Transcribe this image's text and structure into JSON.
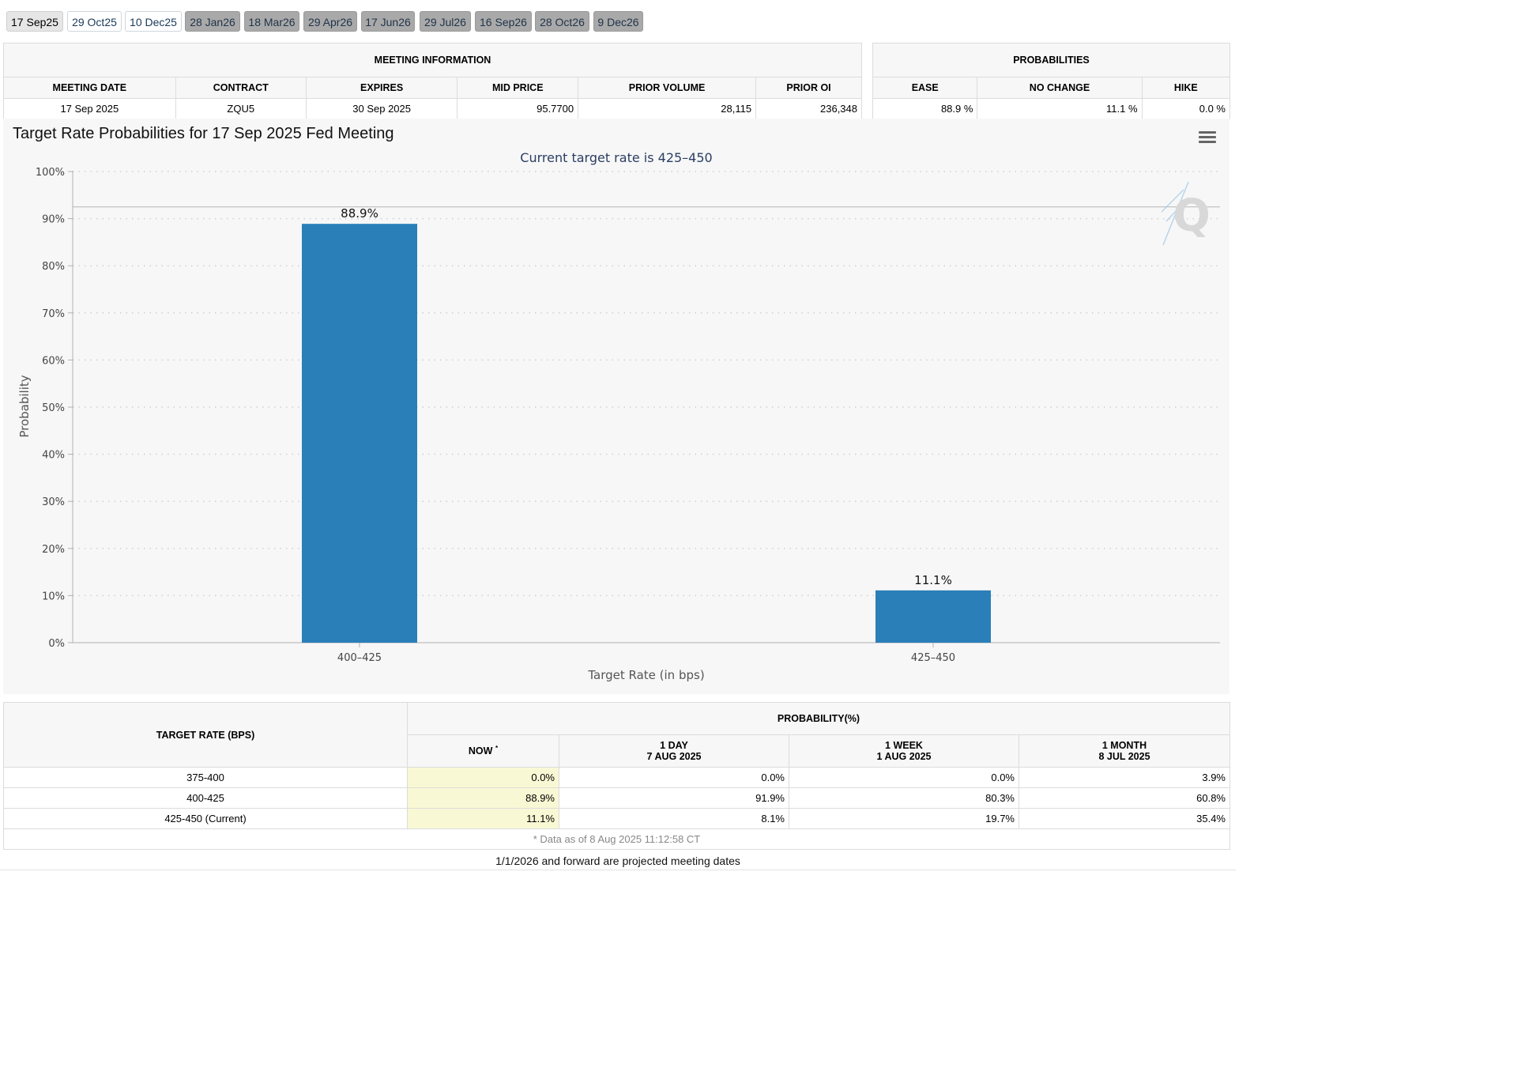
{
  "tabs": [
    {
      "label": "17 Sep25",
      "state": "active"
    },
    {
      "label": "29 Oct25",
      "state": "open"
    },
    {
      "label": "10 Dec25",
      "state": "open"
    },
    {
      "label": "28 Jan26",
      "state": "future"
    },
    {
      "label": "18 Mar26",
      "state": "future"
    },
    {
      "label": "29 Apr26",
      "state": "future"
    },
    {
      "label": "17 Jun26",
      "state": "future"
    },
    {
      "label": "29 Jul26",
      "state": "future"
    },
    {
      "label": "16 Sep26",
      "state": "future"
    },
    {
      "label": "28 Oct26",
      "state": "future"
    },
    {
      "label": "9 Dec26",
      "state": "future"
    }
  ],
  "meeting_info": {
    "title": "MEETING INFORMATION",
    "columns": [
      "MEETING DATE",
      "CONTRACT",
      "EXPIRES",
      "MID PRICE",
      "PRIOR VOLUME",
      "PRIOR OI"
    ],
    "row": [
      "17 Sep 2025",
      "ZQU5",
      "30 Sep 2025",
      "95.7700",
      "28,115",
      "236,348"
    ]
  },
  "probabilities": {
    "title": "PROBABILITIES",
    "columns": [
      "EASE",
      "NO CHANGE",
      "HIKE"
    ],
    "row": [
      "88.9 %",
      "11.1 %",
      "0.0 %"
    ]
  },
  "chart": {
    "title": "Target Rate Probabilities for 17 Sep 2025 Fed Meeting",
    "subtitle": "Current target rate is 425–450",
    "menu_icon": "hamburger-menu-icon",
    "watermark": "Q"
  },
  "chart_data": {
    "type": "bar",
    "title": "Target Rate Probabilities for 17 Sep 2025 Fed Meeting",
    "subtitle": "Current target rate is 425–450",
    "categories": [
      "400–425",
      "425–450"
    ],
    "values": [
      88.9,
      11.1
    ],
    "data_labels": [
      "88.9%",
      "11.1%"
    ],
    "xlabel": "Target Rate (in bps)",
    "ylabel": "Probability",
    "ylim": [
      0,
      100
    ],
    "yticks": [
      "0%",
      "10%",
      "20%",
      "30%",
      "40%",
      "50%",
      "60%",
      "70%",
      "80%",
      "90%",
      "100%"
    ],
    "grid": "dotted horizontal",
    "bar_color": "#2a7fb8",
    "reference_line": 92.5
  },
  "rate_table": {
    "col_target": "TARGET RATE (BPS)",
    "col_prob": "PROBABILITY(%)",
    "sub_now": "NOW",
    "sub_now_mark": "*",
    "sub_1day": [
      "1 DAY",
      "7 AUG 2025"
    ],
    "sub_1week": [
      "1 WEEK",
      "1 AUG 2025"
    ],
    "sub_1month": [
      "1 MONTH",
      "8 JUL 2025"
    ],
    "rows": [
      [
        "375-400",
        "0.0%",
        "0.0%",
        "0.0%",
        "3.9%"
      ],
      [
        "400-425",
        "88.9%",
        "91.9%",
        "80.3%",
        "60.8%"
      ],
      [
        "425-450 (Current)",
        "11.1%",
        "8.1%",
        "19.7%",
        "35.4%"
      ]
    ],
    "note": "* Data as of 8 Aug 2025 11:12:58 CT"
  },
  "footer_note": "1/1/2026 and forward are projected meeting dates"
}
